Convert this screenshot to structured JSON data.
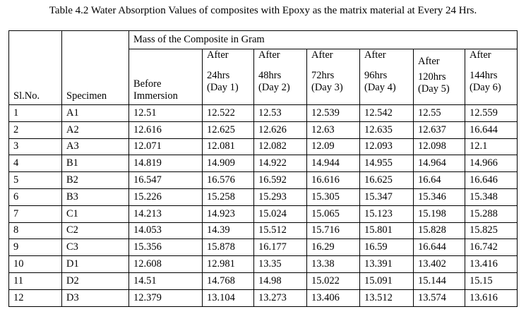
{
  "caption": "Table 4.2 Water Absorption Values of composites with Epoxy as the matrix material at Every 24 Hrs.",
  "header": {
    "slno": "Sl.No.",
    "specimen": "Specimen",
    "group": "Mass of the Composite in Gram",
    "before_line1": "Before",
    "before_line2": "Immersion",
    "after_label": "After",
    "cols": [
      {
        "num": "24",
        "unit": "hrs",
        "day": "(Day 1)"
      },
      {
        "num": "48",
        "unit": "hrs",
        "day": "(Day 2)"
      },
      {
        "num": "72",
        "unit": "hrs",
        "day": "(Day 3)"
      },
      {
        "num": "96",
        "unit": "hrs",
        "day": "(Day 4)"
      },
      {
        "num": "120",
        "unit": "hrs",
        "day": "(Day 5)"
      },
      {
        "num": "144",
        "unit": "hrs",
        "day": "(Day 6)"
      }
    ]
  },
  "rows": [
    {
      "sl": "1",
      "specimen": "A1",
      "values": [
        "12.51",
        "12.522",
        "12.53",
        "12.539",
        "12.542",
        "12.55",
        "12.559"
      ]
    },
    {
      "sl": "2",
      "specimen": "A2",
      "values": [
        "12.616",
        "12.625",
        "12.626",
        "12.63",
        "12.635",
        "12.637",
        "16.644"
      ]
    },
    {
      "sl": "3",
      "specimen": "A3",
      "values": [
        "12.071",
        "12.081",
        "12.082",
        "12.09",
        "12.093",
        "12.098",
        "12.1"
      ]
    },
    {
      "sl": "4",
      "specimen": "B1",
      "values": [
        "14.819",
        "14.909",
        "14.922",
        "14.944",
        "14.955",
        "14.964",
        "14.966"
      ]
    },
    {
      "sl": "5",
      "specimen": "B2",
      "values": [
        "16.547",
        "16.576",
        "16.592",
        "16.616",
        "16.625",
        "16.64",
        "16.646"
      ]
    },
    {
      "sl": "6",
      "specimen": "B3",
      "values": [
        "15.226",
        "15.258",
        "15.293",
        "15.305",
        "15.347",
        "15.346",
        "15.348"
      ]
    },
    {
      "sl": "7",
      "specimen": "C1",
      "values": [
        "14.213",
        "14.923",
        "15.024",
        "15.065",
        "15.123",
        "15.198",
        "15.288"
      ]
    },
    {
      "sl": "8",
      "specimen": "C2",
      "values": [
        "14.053",
        "14.39",
        "15.512",
        "15.716",
        "15.801",
        "15.828",
        "15.825"
      ]
    },
    {
      "sl": "9",
      "specimen": "C3",
      "values": [
        "15.356",
        "15.878",
        "16.177",
        "16.29",
        "16.59",
        "16.644",
        "16.742"
      ]
    },
    {
      "sl": "10",
      "specimen": "D1",
      "values": [
        "12.608",
        "12.981",
        "13.35",
        "13.38",
        "13.391",
        "13.402",
        "13.416"
      ]
    },
    {
      "sl": "11",
      "specimen": "D2",
      "values": [
        "14.51",
        "14.768",
        "14.98",
        "15.022",
        "15.091",
        "15.144",
        "15.15"
      ]
    },
    {
      "sl": "12",
      "specimen": "D3",
      "values": [
        "12.379",
        "13.104",
        "13.273",
        "13.406",
        "13.512",
        "13.574",
        "13.616"
      ]
    }
  ]
}
